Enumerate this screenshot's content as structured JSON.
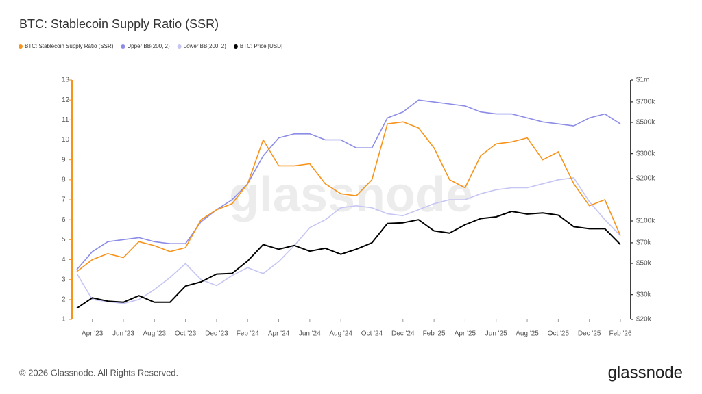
{
  "chart_data": {
    "type": "line",
    "title": "BTC: Stablecoin Supply Ratio (SSR)",
    "watermark": "glassnode",
    "footer": "© 2026 Glassnode. All Rights Reserved.",
    "logo": "glassnode",
    "x": [
      "2023-03",
      "2023-04",
      "2023-05",
      "2023-06",
      "2023-07",
      "2023-08",
      "2023-09",
      "2023-10",
      "2023-11",
      "2023-12",
      "2024-01",
      "2024-02",
      "2024-03",
      "2024-04",
      "2024-05",
      "2024-06",
      "2024-07",
      "2024-08",
      "2024-09",
      "2024-10",
      "2024-11",
      "2024-12",
      "2025-01",
      "2025-02",
      "2025-03",
      "2025-04",
      "2025-05",
      "2025-06",
      "2025-07",
      "2025-08",
      "2025-09",
      "2025-10",
      "2025-11",
      "2025-12",
      "2026-01",
      "2026-02"
    ],
    "xlim": [
      "2023-03",
      "2026-02"
    ],
    "xticks": [
      {
        "value": "2023-04",
        "label": "Apr '23"
      },
      {
        "value": "2023-06",
        "label": "Jun '23"
      },
      {
        "value": "2023-08",
        "label": "Aug '23"
      },
      {
        "value": "2023-10",
        "label": "Oct '23"
      },
      {
        "value": "2023-12",
        "label": "Dec '23"
      },
      {
        "value": "2024-02",
        "label": "Feb '24"
      },
      {
        "value": "2024-04",
        "label": "Apr '24"
      },
      {
        "value": "2024-06",
        "label": "Jun '24"
      },
      {
        "value": "2024-08",
        "label": "Aug '24"
      },
      {
        "value": "2024-10",
        "label": "Oct '24"
      },
      {
        "value": "2024-12",
        "label": "Dec '24"
      },
      {
        "value": "2025-02",
        "label": "Feb '25"
      },
      {
        "value": "2025-04",
        "label": "Apr '25"
      },
      {
        "value": "2025-06",
        "label": "Jun '25"
      },
      {
        "value": "2025-08",
        "label": "Aug '25"
      },
      {
        "value": "2025-10",
        "label": "Oct '25"
      },
      {
        "value": "2025-12",
        "label": "Dec '25"
      },
      {
        "value": "2026-02",
        "label": "Feb '26"
      }
    ],
    "ylim": [
      1,
      13
    ],
    "yticks": [
      1,
      2,
      3,
      4,
      5,
      6,
      7,
      8,
      9,
      10,
      11,
      12,
      13
    ],
    "y2lim": [
      20000,
      1000000
    ],
    "y2log": true,
    "y2ticks": [
      {
        "value": 20000,
        "label": "$20k"
      },
      {
        "value": 30000,
        "label": "$30k"
      },
      {
        "value": 50000,
        "label": "$50k"
      },
      {
        "value": 70000,
        "label": "$70k"
      },
      {
        "value": 100000,
        "label": "$100k"
      },
      {
        "value": 200000,
        "label": "$200k"
      },
      {
        "value": 300000,
        "label": "$300k"
      },
      {
        "value": 500000,
        "label": "$500k"
      },
      {
        "value": 700000,
        "label": "$700k"
      },
      {
        "value": 1000000,
        "label": "$1m"
      }
    ],
    "series": [
      {
        "name": "Lower BB(200, 2)",
        "color": "#c5c5f3",
        "values": [
          3.3,
          2.0,
          1.9,
          1.8,
          2.0,
          2.5,
          3.1,
          3.8,
          3.0,
          2.7,
          3.2,
          3.6,
          3.3,
          3.9,
          4.7,
          5.6,
          6.0,
          6.6,
          6.7,
          6.6,
          6.3,
          6.2,
          6.5,
          6.8,
          7.0,
          7.0,
          7.3,
          7.5,
          7.6,
          7.6,
          7.8,
          8.0,
          8.1,
          6.9,
          6.0,
          5.2
        ]
      },
      {
        "name": "Upper BB(200, 2)",
        "color": "#8c8ce6",
        "values": [
          3.5,
          4.4,
          4.9,
          5.0,
          5.1,
          4.9,
          4.8,
          4.8,
          5.9,
          6.5,
          7.0,
          7.8,
          9.2,
          10.1,
          10.3,
          10.3,
          10.0,
          10.0,
          9.6,
          9.6,
          11.1,
          11.4,
          12.0,
          11.9,
          11.8,
          11.7,
          11.4,
          11.3,
          11.3,
          11.1,
          10.9,
          10.8,
          10.7,
          11.1,
          11.3,
          10.8
        ]
      },
      {
        "name": "BTC: Price [USD]",
        "color": "#000000",
        "axis": "y2",
        "values": [
          24000,
          28500,
          27000,
          26500,
          29500,
          26500,
          26500,
          34500,
          37000,
          42000,
          42500,
          52000,
          68000,
          63000,
          67000,
          61000,
          64000,
          58000,
          63000,
          70000,
          96000,
          97000,
          102000,
          85000,
          82000,
          94000,
          104000,
          107000,
          117000,
          112000,
          114000,
          110000,
          91000,
          88000,
          88000,
          68000
        ]
      },
      {
        "name": "BTC: Stablecoin Supply Ratio (SSR)",
        "color": "#f7931a",
        "values": [
          3.4,
          4.0,
          4.3,
          4.1,
          4.9,
          4.7,
          4.4,
          4.6,
          6.0,
          6.5,
          6.8,
          7.8,
          10.0,
          8.7,
          8.7,
          8.8,
          7.8,
          7.3,
          7.2,
          8.0,
          10.8,
          10.9,
          10.6,
          9.6,
          8.0,
          7.6,
          9.2,
          9.8,
          9.9,
          10.1,
          9.0,
          9.4,
          7.8,
          6.7,
          7.0,
          5.2
        ]
      }
    ],
    "legend_order": [
      3,
      1,
      0,
      2
    ]
  }
}
